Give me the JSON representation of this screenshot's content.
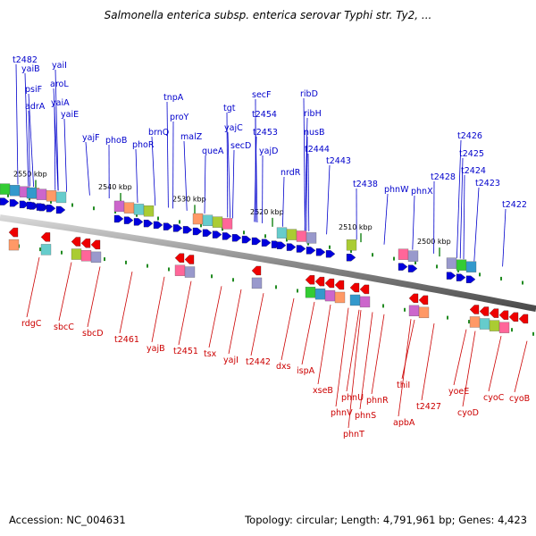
{
  "title": "Salmonella enterica subsp. enterica serovar Typhi str. Ty2, ...",
  "footer": {
    "accession": "Accession: NC_004631",
    "topology": "Topology: circular; Length: 4,791,961 bp; Genes: 4,423"
  },
  "colors": {
    "forward": "#0000cc",
    "reverse": "#cc0000",
    "backbone": "#7a7a7a",
    "tick": "#228b22"
  },
  "ticks": [
    "2550 kbp",
    "2540 kbp",
    "2530 kbp",
    "2520 kbp",
    "2510 kbp",
    "2500 kbp"
  ],
  "forward_genes": [
    "t2482",
    "yaiB",
    "psiF",
    "adrA",
    "yaiI",
    "aroL",
    "yaiA",
    "yaiE",
    "yajF",
    "phoB",
    "phoR",
    "brnQ",
    "proY",
    "tnpA",
    "malZ",
    "queA",
    "tgt",
    "yajC",
    "secD",
    "secF",
    "t2454",
    "t2453",
    "yajD",
    "ribD",
    "ribH",
    "nusB",
    "t2444",
    "t2443",
    "nrdR",
    "t2438",
    "phnW",
    "phnX",
    "t2428",
    "t2426",
    "t2425",
    "t2424",
    "t2423",
    "t2422"
  ],
  "reverse_genes": [
    "rdgC",
    "sbcC",
    "sbcD",
    "t2461",
    "yajB",
    "t2451",
    "tsx",
    "yajI",
    "t2442",
    "dxs",
    "ispA",
    "xseB",
    "phnV",
    "phnU",
    "phnT",
    "phnS",
    "phnR",
    "thiI",
    "apbA",
    "t2427",
    "yoeE",
    "cyoD",
    "cyoC",
    "cyoB"
  ]
}
